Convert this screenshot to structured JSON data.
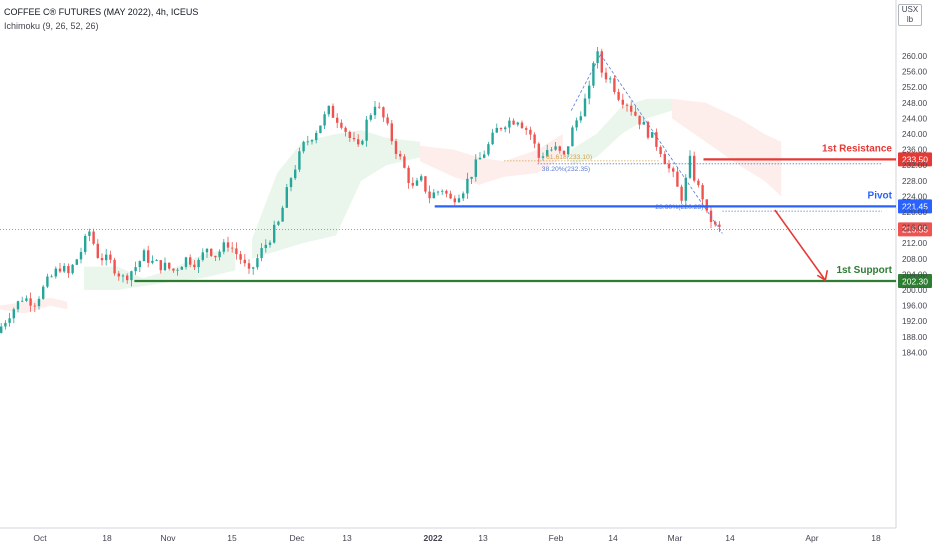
{
  "header": {
    "title": "COFFEE C® FUTURES (MAY 2022), 4h, ICEUS",
    "indicator": "Ichimoku (9, 26, 52, 26)",
    "unit_label": "USX",
    "unit_label2": "lb"
  },
  "colors": {
    "up": "#26a69a",
    "down": "#ef5350",
    "resistance": "#e53935",
    "pivot": "#2962ff",
    "support": "#2e7d32",
    "cloud_bull": "#e8f5e9",
    "cloud_bear": "#fdecea"
  },
  "chart_data": {
    "type": "candlestick",
    "title": "COFFEE C® FUTURES (MAY 2022), 4h, ICEUS",
    "x_tick_labels": [
      "Oct",
      "18",
      "Nov",
      "15",
      "Dec",
      "13",
      "2022",
      "13",
      "Feb",
      "14",
      "Mar",
      "14",
      "Apr",
      "18"
    ],
    "y_tick_labels": [
      "260.00",
      "256.00",
      "252.00",
      "248.00",
      "244.00",
      "240.00",
      "236.00",
      "232.00",
      "228.00",
      "224.00",
      "220.00",
      "216.00",
      "212.00",
      "208.00",
      "204.00",
      "200.00",
      "196.00",
      "192.00",
      "188.00",
      "184.00"
    ],
    "ylim": [
      182,
      264
    ],
    "price_path": [
      [
        0,
        189
      ],
      [
        3,
        194
      ],
      [
        6,
        198
      ],
      [
        9,
        197
      ],
      [
        12,
        202
      ],
      [
        15,
        206
      ],
      [
        17,
        204
      ],
      [
        20,
        210
      ],
      [
        22,
        215
      ],
      [
        24,
        209
      ],
      [
        27,
        207
      ],
      [
        30,
        203
      ],
      [
        33,
        206
      ],
      [
        35,
        209
      ],
      [
        37,
        207
      ],
      [
        40,
        206
      ],
      [
        42,
        205
      ],
      [
        45,
        208
      ],
      [
        48,
        207
      ],
      [
        50,
        211
      ],
      [
        52,
        209
      ],
      [
        55,
        212
      ],
      [
        58,
        208
      ],
      [
        60,
        204
      ],
      [
        63,
        210
      ],
      [
        67,
        217
      ],
      [
        70,
        229
      ],
      [
        73,
        237
      ],
      [
        76,
        241
      ],
      [
        79,
        246
      ],
      [
        82,
        243
      ],
      [
        84,
        239
      ],
      [
        86,
        236
      ],
      [
        88,
        243
      ],
      [
        90,
        248
      ],
      [
        92,
        244
      ],
      [
        95,
        236
      ],
      [
        97,
        231
      ],
      [
        99,
        226
      ],
      [
        101,
        228
      ],
      [
        103,
        224
      ],
      [
        106,
        226
      ],
      [
        108,
        223
      ],
      [
        111,
        226
      ],
      [
        114,
        232
      ],
      [
        117,
        237
      ],
      [
        119,
        241
      ],
      [
        121,
        243
      ],
      [
        124,
        244
      ],
      [
        127,
        240
      ],
      [
        129,
        234
      ],
      [
        131,
        236
      ],
      [
        133,
        236
      ],
      [
        135,
        234
      ],
      [
        137,
        241
      ],
      [
        139,
        246
      ],
      [
        141,
        251
      ],
      [
        142,
        259
      ],
      [
        143,
        260
      ],
      [
        144,
        256
      ],
      [
        146,
        254
      ],
      [
        148,
        250
      ],
      [
        150,
        248
      ],
      [
        152,
        245
      ],
      [
        154,
        242
      ],
      [
        156,
        239
      ],
      [
        158,
        236
      ],
      [
        160,
        231
      ],
      [
        161,
        229
      ],
      [
        162,
        226
      ],
      [
        163,
        224
      ],
      [
        164,
        228
      ],
      [
        165,
        233
      ],
      [
        166,
        229
      ],
      [
        167,
        226
      ],
      [
        168,
        224
      ],
      [
        169,
        219
      ],
      [
        170,
        218
      ],
      [
        171,
        216
      ],
      [
        172,
        215.55
      ]
    ],
    "last_price": "215.55",
    "levels": [
      {
        "name": "1st Resistance",
        "value": 233.5,
        "label": "233.50"
      },
      {
        "name": "Pivot",
        "value": 221.45,
        "label": "221.45"
      },
      {
        "name": "1st Support",
        "value": 202.3,
        "label": "202.30"
      }
    ],
    "fib_labels": [
      {
        "text": "61.618(233.10)",
        "value": 233.1
      },
      {
        "text": "38.20%(232.35)",
        "value": 232.35
      },
      {
        "text": "23.60%(220.23)",
        "value": 220.23
      }
    ],
    "cloud": "Ichimoku cloud shown"
  }
}
